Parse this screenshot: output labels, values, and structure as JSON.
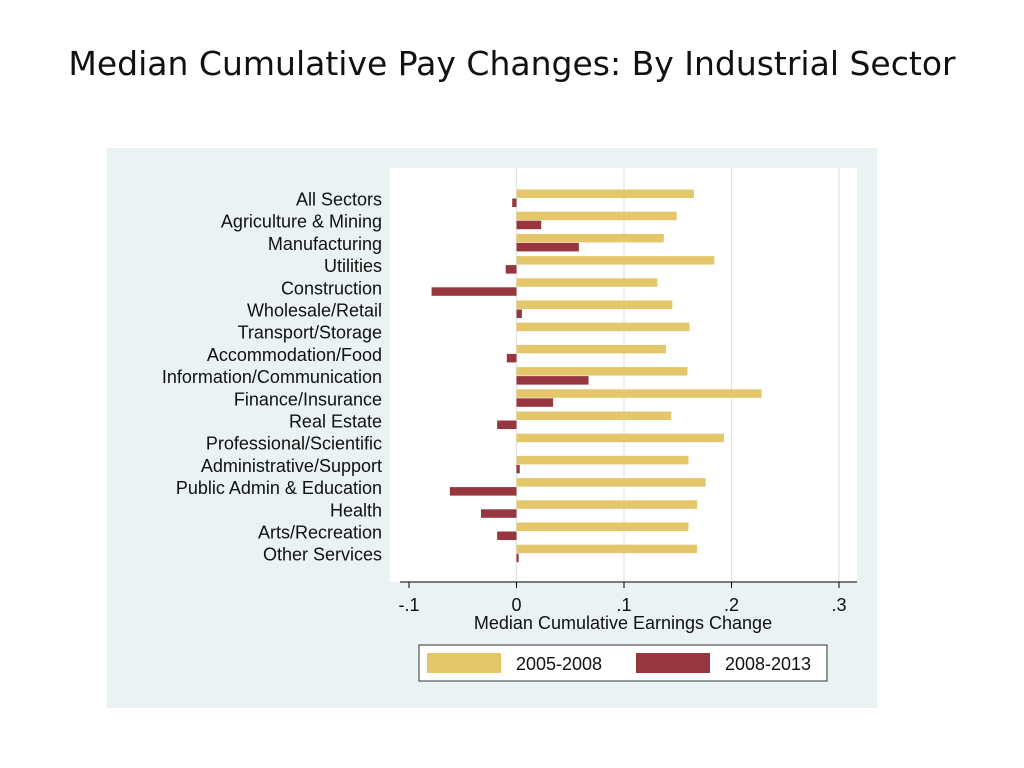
{
  "slide": {
    "title": "Median Cumulative Pay Changes: By Industrial Sector"
  },
  "chart_data": {
    "type": "bar",
    "orientation": "horizontal",
    "categories": [
      "All Sectors",
      "Agriculture & Mining",
      "Manufacturing",
      "Utilities",
      "Construction",
      "Wholesale/Retail",
      "Transport/Storage",
      "Accommodation/Food",
      "Information/Communication",
      "Finance/Insurance",
      "Real Estate",
      "Professional/Scientific",
      "Administrative/Support",
      "Public Admin & Education",
      "Health",
      "Arts/Recreation",
      "Other Services"
    ],
    "series": [
      {
        "name": "2005-2008",
        "color": "#E5C76B",
        "values": [
          0.165,
          0.149,
          0.137,
          0.184,
          0.131,
          0.145,
          0.161,
          0.139,
          0.159,
          0.228,
          0.144,
          0.193,
          0.16,
          0.176,
          0.168,
          0.16,
          0.168
        ]
      },
      {
        "name": "2008-2013",
        "color": "#983640",
        "values": [
          -0.004,
          0.023,
          0.058,
          -0.01,
          -0.079,
          0.005,
          0.0,
          -0.009,
          0.067,
          0.034,
          -0.018,
          0.0,
          0.003,
          -0.062,
          -0.033,
          -0.018,
          0.002
        ]
      }
    ],
    "xlabel": "Median Cumulative Earnings Change",
    "xlim": [
      -0.1,
      0.3
    ],
    "xticks": [
      -0.1,
      0,
      0.1,
      0.2,
      0.3
    ],
    "xtick_labels": [
      "-.1",
      "0",
      ".1",
      ".2",
      ".3"
    ],
    "gridlines": true,
    "legend_position": "bottom"
  },
  "colors": {
    "panel_background": "#EAF2F3",
    "plot_background": "#FFFFFF",
    "grid": "#DDE7E9"
  }
}
